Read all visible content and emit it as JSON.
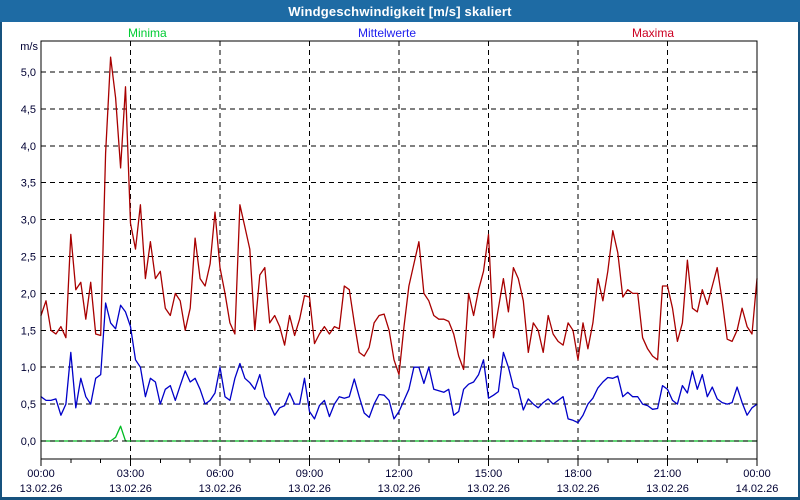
{
  "window": {
    "title": "Windgeschwindigkeit [m/s] skaliert"
  },
  "legend": [
    {
      "label": "Minima",
      "color": "#00CC33"
    },
    {
      "label": "Mittelwerte",
      "color": "#2020EE"
    },
    {
      "label": "Maxima",
      "color": "#CC0022"
    }
  ],
  "unit_label": "m/s",
  "colors": {
    "titlebar": "#1E6BA4",
    "window_border": "#17527E",
    "axis_text": "#000033",
    "grid": "#000000",
    "frame": "#000000",
    "background": "#ffffff"
  },
  "chart_data": {
    "type": "line",
    "title": "Windgeschwindigkeit [m/s] skaliert",
    "xlabel": "",
    "ylabel": "m/s",
    "grid": "dashed",
    "legend_position": "top",
    "ylim": [
      -0.25,
      5.42
    ],
    "ytick_step": 0.5,
    "ytick_labels": [
      "0,0",
      "0,5",
      "1,0",
      "1,5",
      "2,0",
      "2,5",
      "3,0",
      "3,5",
      "4,0",
      "4,5",
      "5,0"
    ],
    "x_minutes_step": 10,
    "x_total_minutes": 1440,
    "x_major_tick_minutes": 180,
    "x_minor_tick_minutes": 60,
    "x_ticks": [
      {
        "time": "00:00",
        "date": "13.02.26"
      },
      {
        "time": "03:00",
        "date": "13.02.26"
      },
      {
        "time": "06:00",
        "date": "13.02.26"
      },
      {
        "time": "09:00",
        "date": "13.02.26"
      },
      {
        "time": "12:00",
        "date": "13.02.26"
      },
      {
        "time": "15:00",
        "date": "13.02.26"
      },
      {
        "time": "18:00",
        "date": "13.02.26"
      },
      {
        "time": "21:00",
        "date": "13.02.26"
      },
      {
        "time": "00:00",
        "date": "14.02.26"
      }
    ],
    "series": [
      {
        "name": "Minima",
        "color": "#00BB22",
        "values": [
          0,
          0,
          0,
          0,
          0,
          0,
          0,
          0,
          0,
          0,
          0,
          0,
          0,
          0,
          0,
          0.05,
          0.2,
          0,
          0,
          0,
          0,
          0,
          0,
          0,
          0,
          0,
          0,
          0,
          0,
          0,
          0,
          0,
          0,
          0,
          0,
          0,
          0,
          0,
          0,
          0,
          0,
          0,
          0,
          0,
          0,
          0,
          0,
          0,
          0,
          0,
          0,
          0,
          0,
          0,
          0,
          0,
          0,
          0,
          0,
          0,
          0,
          0,
          0,
          0,
          0,
          0,
          0,
          0,
          0,
          0,
          0,
          0,
          0,
          0,
          0,
          0,
          0,
          0,
          0,
          0,
          0,
          0,
          0,
          0,
          0,
          0,
          0,
          0,
          0,
          0,
          0,
          0,
          0,
          0,
          0,
          0,
          0,
          0,
          0,
          0,
          0,
          0,
          0,
          0,
          0,
          0,
          0,
          0,
          0,
          0,
          0,
          0,
          0,
          0,
          0,
          0,
          0,
          0,
          0,
          0,
          0,
          0,
          0,
          0,
          0,
          0,
          0,
          0,
          0,
          0,
          0,
          0,
          0,
          0,
          0,
          0,
          0,
          0,
          0,
          0,
          0,
          0,
          0,
          0,
          0
        ]
      },
      {
        "name": "Mittelwerte",
        "color": "#0000C8",
        "values": [
          0.6,
          0.55,
          0.55,
          0.57,
          0.35,
          0.5,
          1.2,
          0.45,
          0.85,
          0.6,
          0.5,
          0.85,
          0.9,
          1.87,
          1.6,
          1.52,
          1.84,
          1.75,
          1.55,
          1.1,
          1.0,
          0.6,
          0.85,
          0.8,
          0.5,
          0.7,
          0.75,
          0.55,
          0.75,
          0.95,
          0.8,
          0.85,
          0.7,
          0.5,
          0.55,
          0.65,
          1.0,
          0.6,
          0.55,
          0.85,
          1.05,
          0.85,
          0.79,
          0.7,
          0.9,
          0.6,
          0.5,
          0.35,
          0.45,
          0.48,
          0.65,
          0.5,
          0.5,
          0.85,
          0.4,
          0.3,
          0.48,
          0.55,
          0.33,
          0.5,
          0.6,
          0.58,
          0.6,
          0.84,
          0.6,
          0.38,
          0.32,
          0.5,
          0.63,
          0.62,
          0.55,
          0.3,
          0.4,
          0.55,
          0.7,
          1.0,
          1.0,
          0.78,
          1.0,
          0.7,
          0.68,
          0.66,
          0.7,
          0.35,
          0.4,
          0.7,
          0.77,
          0.8,
          0.9,
          1.1,
          0.58,
          0.62,
          0.67,
          1.2,
          1.0,
          0.73,
          0.7,
          0.42,
          0.57,
          0.5,
          0.45,
          0.52,
          0.57,
          0.5,
          0.55,
          0.6,
          0.3,
          0.28,
          0.25,
          0.35,
          0.5,
          0.58,
          0.72,
          0.8,
          0.86,
          0.85,
          0.88,
          0.6,
          0.66,
          0.6,
          0.6,
          0.5,
          0.48,
          0.43,
          0.44,
          0.75,
          0.7,
          0.55,
          0.5,
          0.75,
          0.65,
          0.95,
          0.7,
          0.9,
          0.6,
          0.73,
          0.57,
          0.52,
          0.5,
          0.52,
          0.73,
          0.52,
          0.35,
          0.45,
          0.5
        ]
      },
      {
        "name": "Maxima",
        "color": "#A80000",
        "values": [
          1.7,
          1.9,
          1.5,
          1.45,
          1.55,
          1.4,
          2.8,
          2.05,
          2.15,
          1.65,
          2.15,
          1.45,
          1.43,
          3.9,
          5.2,
          4.65,
          3.7,
          4.8,
          2.95,
          2.6,
          3.2,
          2.2,
          2.7,
          2.2,
          2.3,
          1.8,
          1.7,
          2.0,
          1.9,
          1.5,
          1.8,
          2.75,
          2.2,
          2.1,
          2.4,
          3.1,
          2.35,
          2.0,
          1.6,
          1.45,
          3.2,
          2.9,
          2.6,
          1.5,
          2.25,
          2.35,
          1.6,
          1.7,
          1.55,
          1.3,
          1.7,
          1.43,
          1.65,
          1.97,
          1.95,
          1.32,
          1.45,
          1.55,
          1.45,
          1.55,
          1.52,
          2.1,
          2.05,
          1.6,
          1.2,
          1.15,
          1.27,
          1.6,
          1.7,
          1.72,
          1.5,
          1.1,
          0.9,
          1.55,
          2.1,
          2.4,
          2.7,
          2.0,
          1.9,
          1.7,
          1.65,
          1.65,
          1.62,
          1.45,
          1.15,
          0.97,
          2.0,
          1.7,
          2.05,
          2.3,
          2.8,
          1.4,
          1.8,
          2.2,
          1.75,
          2.35,
          2.2,
          1.9,
          1.2,
          1.6,
          1.5,
          1.2,
          1.7,
          1.45,
          1.35,
          1.3,
          1.6,
          1.5,
          1.1,
          1.6,
          1.25,
          1.6,
          2.2,
          1.9,
          2.3,
          2.85,
          2.55,
          1.95,
          2.05,
          2.0,
          2.0,
          1.4,
          1.25,
          1.15,
          1.1,
          2.1,
          2.1,
          1.8,
          1.35,
          1.6,
          2.45,
          1.8,
          1.75,
          2.05,
          1.85,
          2.1,
          2.35,
          1.9,
          1.38,
          1.35,
          1.5,
          1.8,
          1.55,
          1.45,
          2.2
        ]
      }
    ]
  }
}
